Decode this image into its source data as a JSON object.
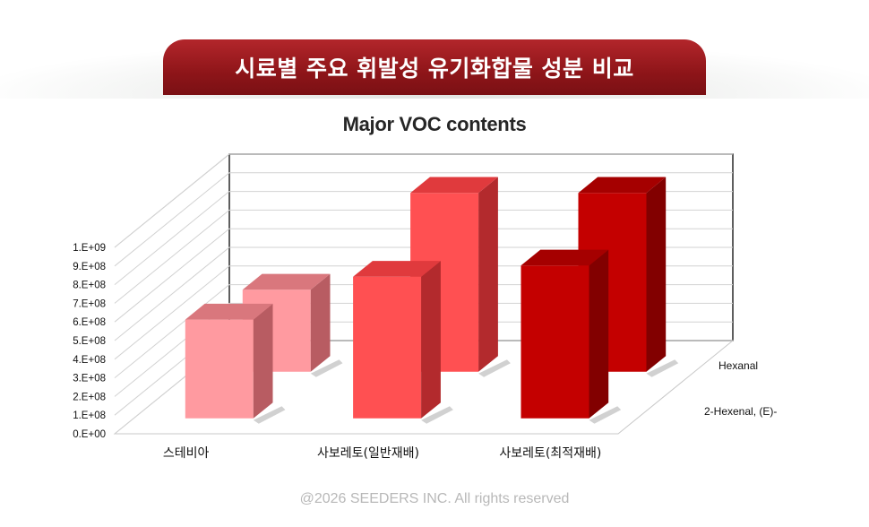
{
  "header": {
    "banner_title": "시료별 주요 휘발성 유기화합물 성분 비교"
  },
  "footer": {
    "copyright": "@2026 SEEDERS INC. All rights reserved"
  },
  "chart_data": {
    "type": "bar",
    "title": "Major VOC contents",
    "categories": [
      "스테비아",
      "사보레토(일반재배)",
      "사보레토(최적재배)"
    ],
    "series": [
      {
        "name": "Hexanal",
        "values": [
          440000000.0,
          960000000.0,
          960000000.0
        ]
      },
      {
        "name": "2-Hexenal, (E)-",
        "values": [
          530000000.0,
          760000000.0,
          820000000.0
        ]
      }
    ],
    "yticks": [
      "0.E+00",
      "1.E+08",
      "2.E+08",
      "3.E+08",
      "4.E+08",
      "5.E+08",
      "6.E+08",
      "7.E+08",
      "8.E+08",
      "9.E+08",
      "1.E+09"
    ],
    "ylim": [
      0,
      1000000000.0
    ],
    "grid": true,
    "colors": {
      "category_front": [
        "#ff9aa0",
        "#ff5052",
        "#c40000"
      ],
      "category_side": [
        "#b85c62",
        "#b32a2d",
        "#820000"
      ],
      "category_top": [
        "#d9777d",
        "#e03a3d",
        "#a50000"
      ]
    }
  }
}
